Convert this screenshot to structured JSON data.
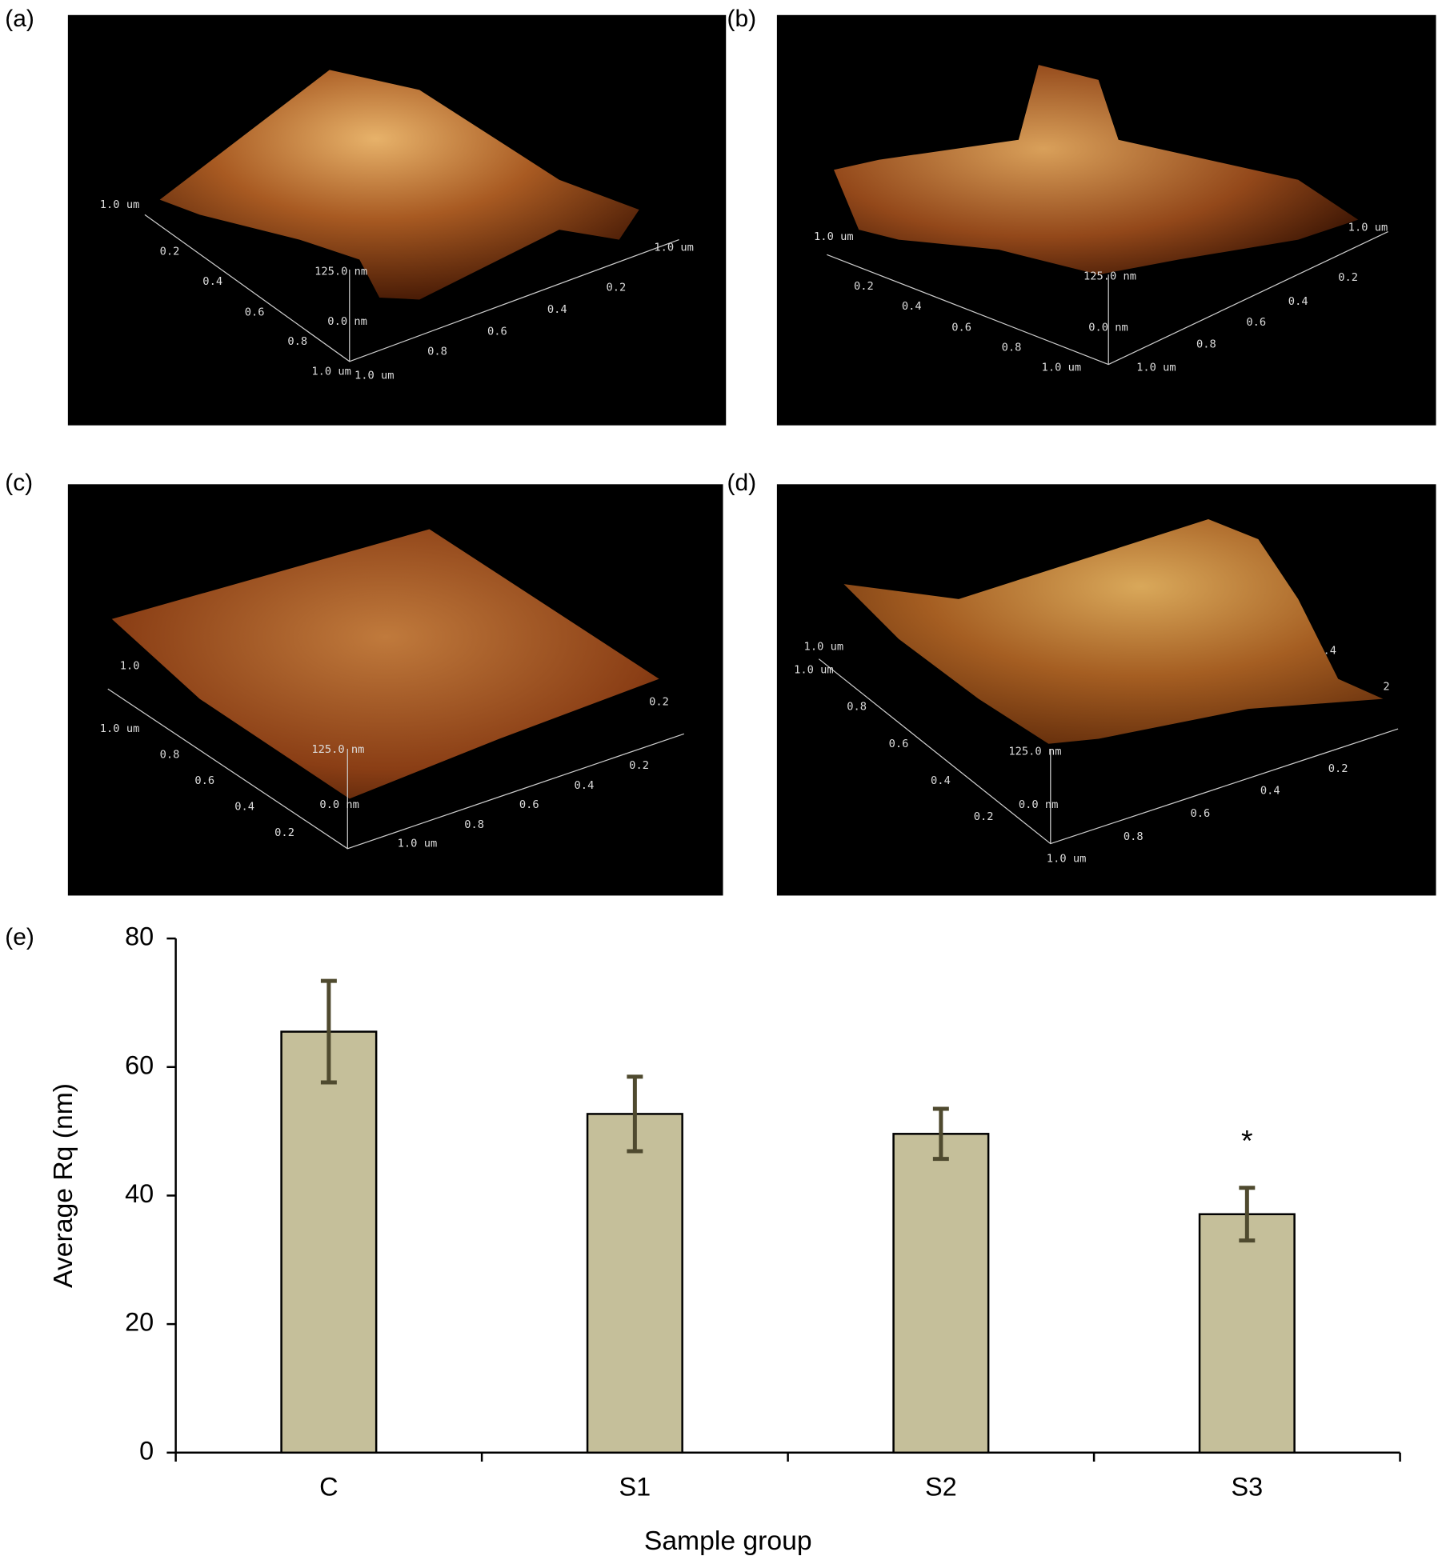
{
  "panels": [
    {
      "label": "(a)",
      "axis_labels": [
        "1.0 um",
        "0.2",
        "0.4",
        "0.6",
        "0.8",
        "1.0 um",
        "1.0 um",
        "0.8",
        "0.6",
        "0.4",
        "0.2",
        "1.0 um",
        "125.0 nm",
        "0.0 nm"
      ]
    },
    {
      "label": "(b)",
      "axis_labels": [
        "1.0 um",
        "0.2",
        "0.4",
        "0.6",
        "0.8",
        "1.0 um",
        "1.0 um",
        "0.8",
        "0.6",
        "0.4",
        "0.2",
        "1.0 um",
        "125.0 nm",
        "0.0 nm"
      ]
    },
    {
      "label": "(c)",
      "axis_labels": [
        "1.0",
        "1.0 um",
        "0.8",
        "0.6",
        "0.4",
        "0.2",
        "1.0 um",
        "0.8",
        "0.6",
        "0.4",
        "0.2",
        "0.2",
        "125.0 nm",
        "0.0 nm"
      ]
    },
    {
      "label": "(d)",
      "axis_labels": [
        "1.0 um",
        "1.0 um",
        "0.8",
        "0.6",
        "0.4",
        "0.2",
        "1.0 um",
        "0.8",
        "0.6",
        "0.4",
        "0.2",
        "2",
        ".4",
        "125.0 nm",
        "0.0 nm"
      ]
    }
  ],
  "chart_data": {
    "type": "bar",
    "panel_label": "(e)",
    "x_label": "Sample group",
    "y_label": "Average Rq (nm)",
    "categories": [
      "C",
      "S1",
      "S2",
      "S3"
    ],
    "values": [
      65.5,
      52.7,
      49.6,
      37.1
    ],
    "errors": [
      7.9,
      5.8,
      3.9,
      4.1
    ],
    "color": "#c5bf9a",
    "error_color": "#4f4a2f",
    "ylim": [
      0,
      80
    ],
    "yticks": [
      0,
      20,
      40,
      60,
      80
    ],
    "annotations": [
      {
        "text": "*",
        "x": "S3"
      }
    ]
  }
}
